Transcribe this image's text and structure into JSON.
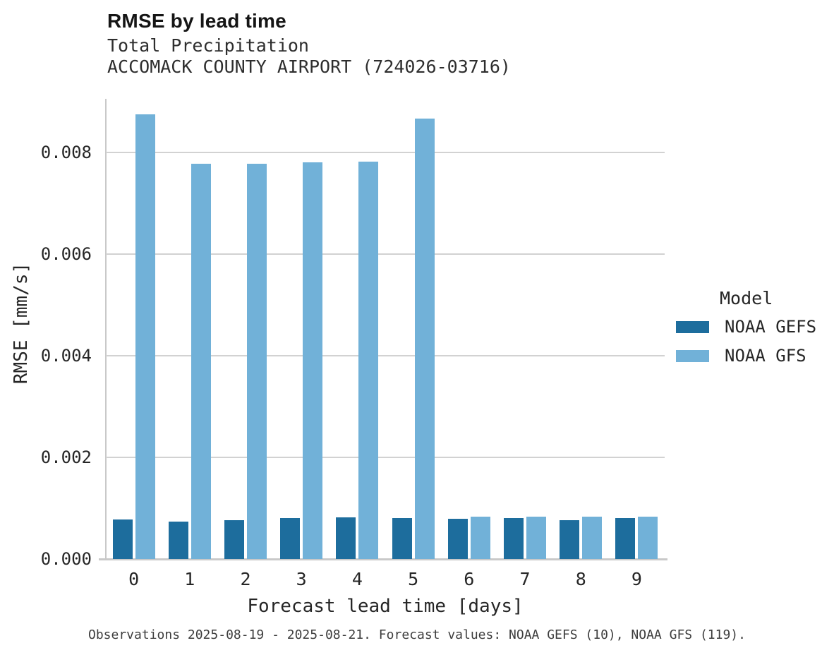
{
  "chart_data": {
    "type": "bar",
    "title": "RMSE by lead time",
    "subtitle1": "Total Precipitation",
    "subtitle2": "ACCOMACK COUNTY AIRPORT (724026-03716)",
    "categories": [
      "0",
      "1",
      "2",
      "3",
      "4",
      "5",
      "6",
      "7",
      "8",
      "9"
    ],
    "series": [
      {
        "name": "NOAA GEFS",
        "color": "#1d6d9d",
        "values": [
          0.00078,
          0.00074,
          0.00076,
          0.00081,
          0.00082,
          0.00081,
          0.00079,
          0.00081,
          0.00077,
          0.00081
        ]
      },
      {
        "name": "NOAA GFS",
        "color": "#71b1d8",
        "values": [
          0.00874,
          0.00777,
          0.00777,
          0.0078,
          0.00782,
          0.00866,
          0.00083,
          0.00083,
          0.00083,
          0.00083
        ]
      }
    ],
    "xlabel": "Forecast lead time [days]",
    "ylabel": "RMSE [mm/s]",
    "ylim": [
      0,
      0.00905
    ],
    "yticks": [
      0,
      0.002,
      0.004,
      0.006,
      0.008
    ],
    "ytick_labels": [
      "0.000",
      "0.002",
      "0.004",
      "0.006",
      "0.008"
    ],
    "legend_title": "Model",
    "legend_position": "right",
    "grid": true,
    "caption": "Observations 2025-08-19 - 2025-08-21. Forecast values: NOAA GEFS (10), NOAA GFS (119)."
  },
  "colors": {
    "grid": "#d2d2d2",
    "spine": "#c9c9c9",
    "text": "#262626",
    "caption_text": "#3d3d3d"
  }
}
